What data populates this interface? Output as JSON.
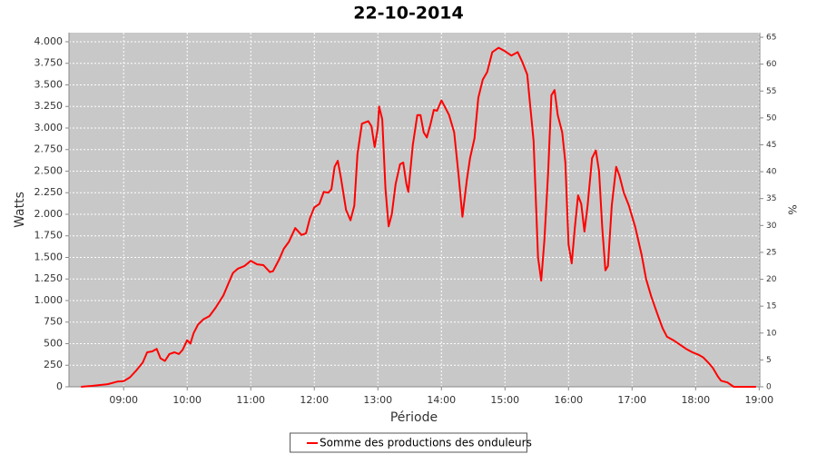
{
  "chart_data": {
    "type": "line",
    "title": "22-10-2014",
    "x_label": "Période",
    "y_label": "Watts",
    "y2_label": "%",
    "xlim": [
      8.14,
      19.01
    ],
    "xticks": [
      {
        "value": 9,
        "label": "09:00"
      },
      {
        "value": 10,
        "label": "10:00"
      },
      {
        "value": 11,
        "label": "11:00"
      },
      {
        "value": 12,
        "label": "12:00"
      },
      {
        "value": 13,
        "label": "13:00"
      },
      {
        "value": 14,
        "label": "14:00"
      },
      {
        "value": 15,
        "label": "15:00"
      },
      {
        "value": 16,
        "label": "16:00"
      },
      {
        "value": 17,
        "label": "17:00"
      },
      {
        "value": 18,
        "label": "18:00"
      },
      {
        "value": 19,
        "label": "19:00"
      }
    ],
    "ylim": [
      0,
      4105
    ],
    "yticks": [
      0,
      250,
      500,
      750,
      {
        "value": 1000,
        "label": "1.000"
      },
      {
        "value": 1250,
        "label": "1.250"
      },
      {
        "value": 1500,
        "label": "1.500"
      },
      {
        "value": 1750,
        "label": "1.750"
      },
      {
        "value": 2000,
        "label": "2.000"
      },
      {
        "value": 2250,
        "label": "2.250"
      },
      {
        "value": 2500,
        "label": "2.500"
      },
      {
        "value": 2750,
        "label": "2.750"
      },
      {
        "value": 3000,
        "label": "3.000"
      },
      {
        "value": 3250,
        "label": "3.250"
      },
      {
        "value": 3500,
        "label": "3.500"
      },
      {
        "value": 3750,
        "label": "3.750"
      },
      {
        "value": 4000,
        "label": "4.000"
      }
    ],
    "y2lim": [
      0,
      65.85
    ],
    "y2ticks": [
      0,
      5,
      10,
      15,
      20,
      25,
      30,
      35,
      40,
      45,
      50,
      55,
      60,
      65
    ],
    "grid": true,
    "legend": "bottom",
    "x": [
      8.33,
      8.5,
      8.75,
      8.9,
      9.0,
      9.1,
      9.2,
      9.3,
      9.37,
      9.45,
      9.52,
      9.58,
      9.65,
      9.72,
      9.8,
      9.87,
      9.93,
      10.0,
      10.05,
      10.1,
      10.17,
      10.25,
      10.35,
      10.45,
      10.57,
      10.65,
      10.72,
      10.8,
      10.9,
      11.0,
      11.1,
      11.2,
      11.3,
      11.35,
      11.45,
      11.52,
      11.6,
      11.7,
      11.8,
      11.87,
      11.93,
      12.0,
      12.08,
      12.15,
      12.22,
      12.27,
      12.32,
      12.37,
      12.42,
      12.5,
      12.57,
      12.63,
      12.68,
      12.75,
      12.85,
      12.9,
      12.95,
      13.0,
      13.02,
      13.07,
      13.12,
      13.17,
      13.22,
      13.28,
      13.35,
      13.4,
      13.45,
      13.48,
      13.55,
      13.62,
      13.67,
      13.72,
      13.77,
      13.83,
      13.88,
      13.93,
      14.0,
      14.05,
      14.12,
      14.2,
      14.27,
      14.33,
      14.4,
      14.45,
      14.52,
      14.58,
      14.65,
      14.72,
      14.8,
      14.9,
      15.0,
      15.1,
      15.2,
      15.27,
      15.35,
      15.45,
      15.52,
      15.57,
      15.62,
      15.68,
      15.73,
      15.78,
      15.83,
      15.9,
      15.95,
      16.0,
      16.05,
      16.1,
      16.15,
      16.2,
      16.25,
      16.3,
      16.37,
      16.43,
      16.48,
      16.53,
      16.58,
      16.62,
      16.68,
      16.75,
      16.8,
      16.87,
      16.95,
      17.05,
      17.15,
      17.22,
      17.3,
      17.4,
      17.48,
      17.55,
      17.65,
      17.75,
      17.85,
      17.95,
      18.05,
      18.12,
      18.2,
      18.27,
      18.35,
      18.4,
      18.5,
      18.6,
      18.95
    ],
    "series": [
      {
        "name": "Somme des productions des onduleurs",
        "color": "#ff0000",
        "values": [
          0,
          10,
          30,
          60,
          65,
          110,
          190,
          280,
          400,
          410,
          440,
          330,
          300,
          380,
          400,
          380,
          430,
          540,
          500,
          620,
          720,
          780,
          820,
          920,
          1060,
          1200,
          1320,
          1370,
          1400,
          1460,
          1420,
          1410,
          1330,
          1340,
          1480,
          1600,
          1680,
          1840,
          1760,
          1780,
          1950,
          2080,
          2120,
          2260,
          2250,
          2290,
          2550,
          2620,
          2420,
          2050,
          1930,
          2100,
          2700,
          3050,
          3080,
          3020,
          2780,
          3000,
          3250,
          3100,
          2300,
          1860,
          2000,
          2350,
          2580,
          2600,
          2350,
          2260,
          2800,
          3150,
          3150,
          2950,
          2890,
          3050,
          3210,
          3200,
          3320,
          3250,
          3150,
          2950,
          2450,
          1970,
          2400,
          2650,
          2880,
          3350,
          3560,
          3650,
          3880,
          3930,
          3890,
          3840,
          3880,
          3770,
          3620,
          2850,
          1500,
          1230,
          1700,
          2500,
          3380,
          3440,
          3150,
          2950,
          2600,
          1650,
          1430,
          1850,
          2220,
          2120,
          1800,
          2100,
          2650,
          2740,
          2500,
          1850,
          1350,
          1400,
          2100,
          2550,
          2450,
          2250,
          2100,
          1850,
          1530,
          1250,
          1050,
          840,
          680,
          580,
          540,
          490,
          440,
          400,
          370,
          340,
          280,
          220,
          120,
          70,
          50,
          0,
          0
        ]
      }
    ]
  }
}
